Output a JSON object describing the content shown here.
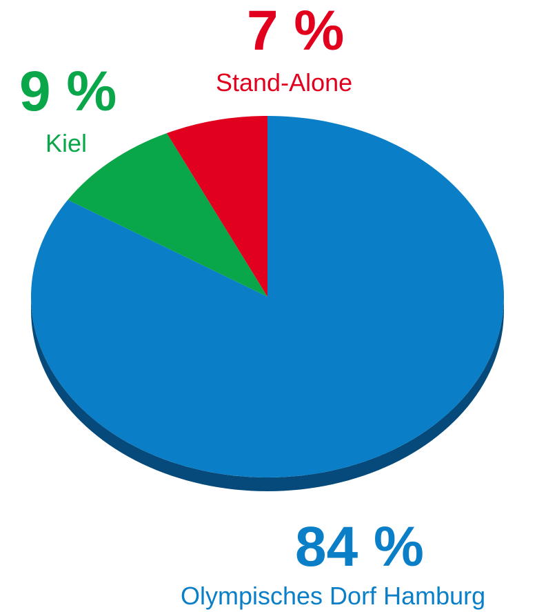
{
  "chart_data": {
    "type": "pie",
    "slices": [
      {
        "label": "Olympisches Dorf Hamburg",
        "value": 84,
        "value_label": "84 %",
        "color": "#0a7fc7",
        "shadow": "#054a7a"
      },
      {
        "label": "Kiel",
        "value": 9,
        "value_label": "9 %",
        "color": "#0aa64a",
        "shadow": "#066b30"
      },
      {
        "label": "Stand-Alone",
        "value": 7,
        "value_label": "7 %",
        "color": "#e1001e",
        "shadow": "#8e0013"
      }
    ],
    "start_angle_deg": 0,
    "direction": "clockwise",
    "style": "3d-tilted"
  }
}
